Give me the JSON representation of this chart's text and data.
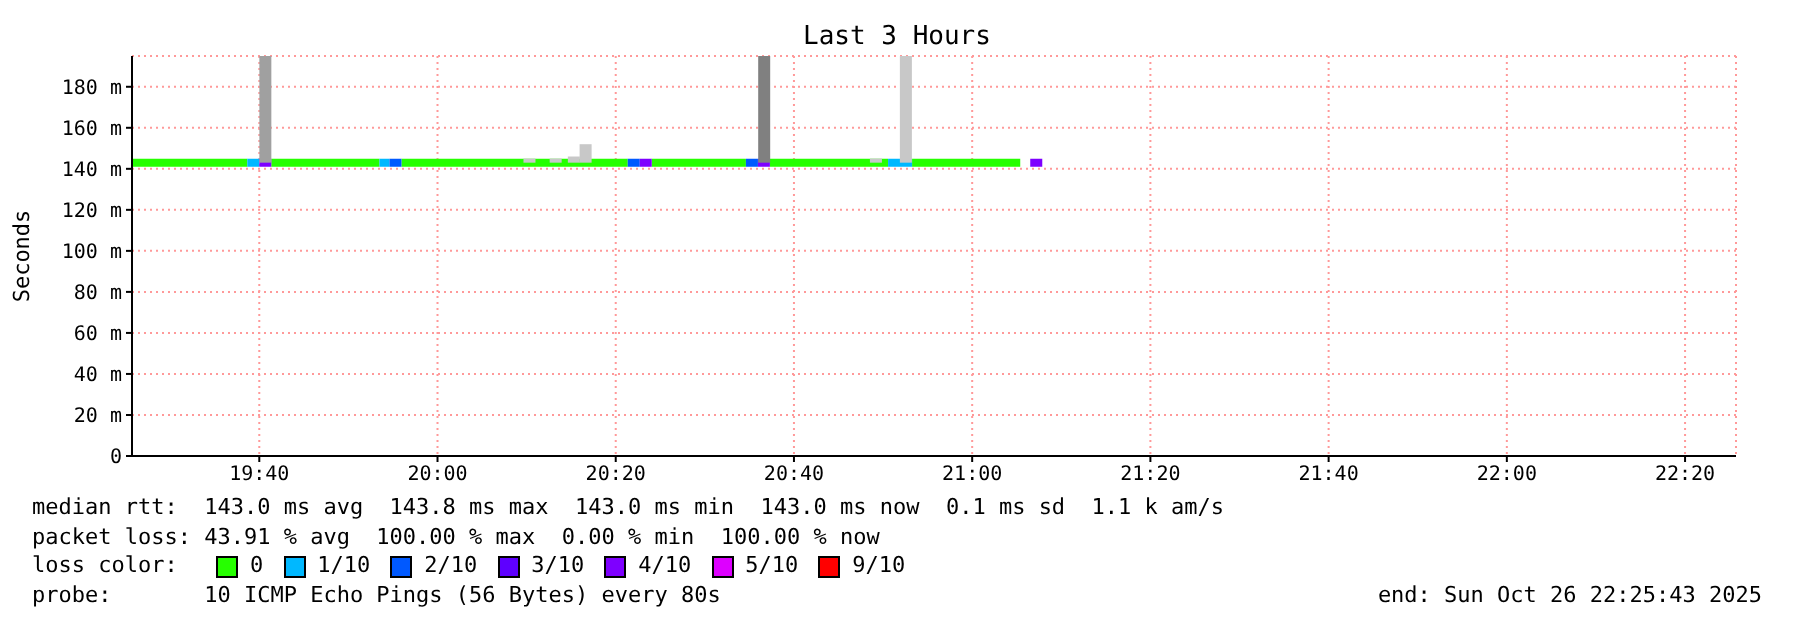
{
  "chart_data": {
    "type": "line",
    "title": "Last 3 Hours",
    "ylabel": "Seconds",
    "xlim": [
      19.4286,
      22.4286
    ],
    "xticks": [
      {
        "value": 19.66667,
        "label": "19:40"
      },
      {
        "value": 20,
        "label": "20:00"
      },
      {
        "value": 20.33333,
        "label": "20:20"
      },
      {
        "value": 20.66667,
        "label": "20:40"
      },
      {
        "value": 21,
        "label": "21:00"
      },
      {
        "value": 21.33333,
        "label": "21:20"
      },
      {
        "value": 21.66667,
        "label": "21:40"
      },
      {
        "value": 22,
        "label": "22:00"
      },
      {
        "value": 22.33333,
        "label": "22:20"
      }
    ],
    "ylim": [
      0,
      195
    ],
    "yticks": [
      0,
      {
        "value": 20,
        "label": "20 m"
      },
      {
        "value": 40,
        "label": "40 m"
      },
      {
        "value": 60,
        "label": "60 m"
      },
      {
        "value": 80,
        "label": "80 m"
      },
      {
        "value": 100,
        "label": "100 m"
      },
      {
        "value": 120,
        "label": "120 m"
      },
      {
        "value": 140,
        "label": "140 m"
      },
      {
        "value": 160,
        "label": "160 m"
      },
      {
        "value": 180,
        "label": "180 m"
      }
    ],
    "grid": true,
    "legend": "bottom",
    "legend_title": "loss color:",
    "marker": "none",
    "series": [
      {
        "type": "bar",
        "x": [
          19.678,
          20.172,
          20.221,
          20.255,
          20.277,
          20.611,
          20.82,
          20.876
        ],
        "base": [
          143,
          143,
          143,
          143,
          143,
          143,
          143,
          143
        ],
        "values": [
          52,
          2,
          2,
          3,
          9,
          52,
          2,
          52
        ],
        "colors": [
          "#a0a0a0",
          "#c8c8c8",
          "#c8c8c8",
          "#c8c8c8",
          "#c8c8c8",
          "#808080",
          "#c8c8c8",
          "#c8c8c8"
        ]
      },
      {
        "name": "0",
        "color": "#26ff00",
        "x": [
          19.4286,
          19.6442,
          19.6667,
          19.6891,
          19.8914,
          19.9101,
          19.9326,
          20.3558,
          20.3783,
          20.4007,
          20.5768,
          20.5993,
          20.6217,
          20.8427,
          20.865,
          20.8876,
          21.0899
        ],
        "values": [
          143,
          143,
          null,
          143,
          143,
          null,
          143,
          143,
          null,
          143,
          143,
          null,
          143,
          143,
          null,
          143,
          143
        ]
      },
      {
        "name": "1/10",
        "color": "#00b8ff",
        "x": [
          19.6442,
          19.6667,
          19.68,
          19.8914,
          19.9101,
          19.92,
          20.8427,
          20.8876
        ],
        "values": [
          143,
          143,
          null,
          143,
          143,
          null,
          143,
          143
        ]
      },
      {
        "name": "2/10",
        "color": "#0059ff",
        "x": [
          19.9101,
          19.9326,
          19.95,
          20.3558,
          20.3783,
          20.45,
          20.5768,
          20.5993
        ],
        "values": [
          143,
          143,
          null,
          143,
          143,
          null,
          143,
          143
        ]
      },
      {
        "name": "3/10",
        "color": "#5e00ff"
      },
      {
        "name": "4/10",
        "color": "#7e00ff",
        "x": [
          19.6667,
          19.6891,
          19.7,
          20.3783,
          20.4007,
          20.5,
          20.5993,
          20.6217,
          20.9,
          21.1086,
          21.1311
        ],
        "values": [
          143,
          143,
          null,
          143,
          143,
          null,
          143,
          143,
          null,
          143,
          143
        ]
      },
      {
        "name": "5/10",
        "color": "#dd00ff"
      },
      {
        "name": "9/10",
        "color": "#ff0000"
      }
    ],
    "annotations": [
      "median rtt:  143.0 ms avg  143.8 ms max  143.0 ms min  143.0 ms now  0.1 ms sd  1.1 k am/s",
      "packet loss: 43.91 % avg  100.00 % max  0.00 % min  100.00 % now",
      "probe:       10 ICMP Echo Pings (56 Bytes) every 80s",
      "end: Sun Oct 26 22:25:43 2025"
    ]
  }
}
